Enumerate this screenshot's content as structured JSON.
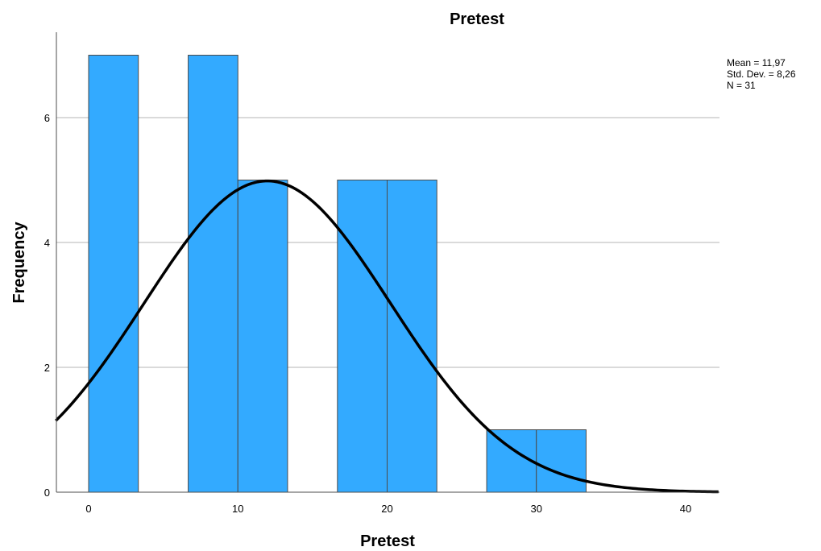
{
  "chart_data": {
    "type": "bar",
    "subtype": "histogram",
    "title": "Pretest",
    "xlabel": "Pretest",
    "ylabel": "Frequency",
    "bin_width": 3.33,
    "bins": [
      {
        "x0": 0,
        "x1": 3.33,
        "count": 7
      },
      {
        "x0": 3.33,
        "x1": 6.67,
        "count": 0
      },
      {
        "x0": 6.67,
        "x1": 10,
        "count": 7
      },
      {
        "x0": 10,
        "x1": 13.33,
        "count": 5
      },
      {
        "x0": 13.33,
        "x1": 16.67,
        "count": 0
      },
      {
        "x0": 16.67,
        "x1": 20,
        "count": 5
      },
      {
        "x0": 20,
        "x1": 23.33,
        "count": 5
      },
      {
        "x0": 23.33,
        "x1": 26.67,
        "count": 0
      },
      {
        "x0": 26.67,
        "x1": 30,
        "count": 1
      },
      {
        "x0": 30,
        "x1": 33.33,
        "count": 1
      }
    ],
    "xlim": [
      -2.2,
      42.2
    ],
    "ylim": [
      0,
      7.5
    ],
    "x_ticks": [
      0,
      10,
      20,
      30,
      40
    ],
    "x_tick_labels": [
      "0",
      "10",
      "20",
      "30",
      "40"
    ],
    "y_ticks": [
      0,
      2,
      4,
      6
    ],
    "y_tick_labels": [
      "0",
      "2",
      "4",
      "6"
    ],
    "grid": "horizontal",
    "bar_color": "#33aaff",
    "normal_curve": {
      "mean": 11.97,
      "std_dev": 8.26,
      "n": 31,
      "color": "#000000"
    },
    "stats_box": {
      "lines": [
        "Mean = 11,97",
        "Std. Dev. = 8,26",
        "N = 31"
      ],
      "placement": "top-right"
    }
  }
}
